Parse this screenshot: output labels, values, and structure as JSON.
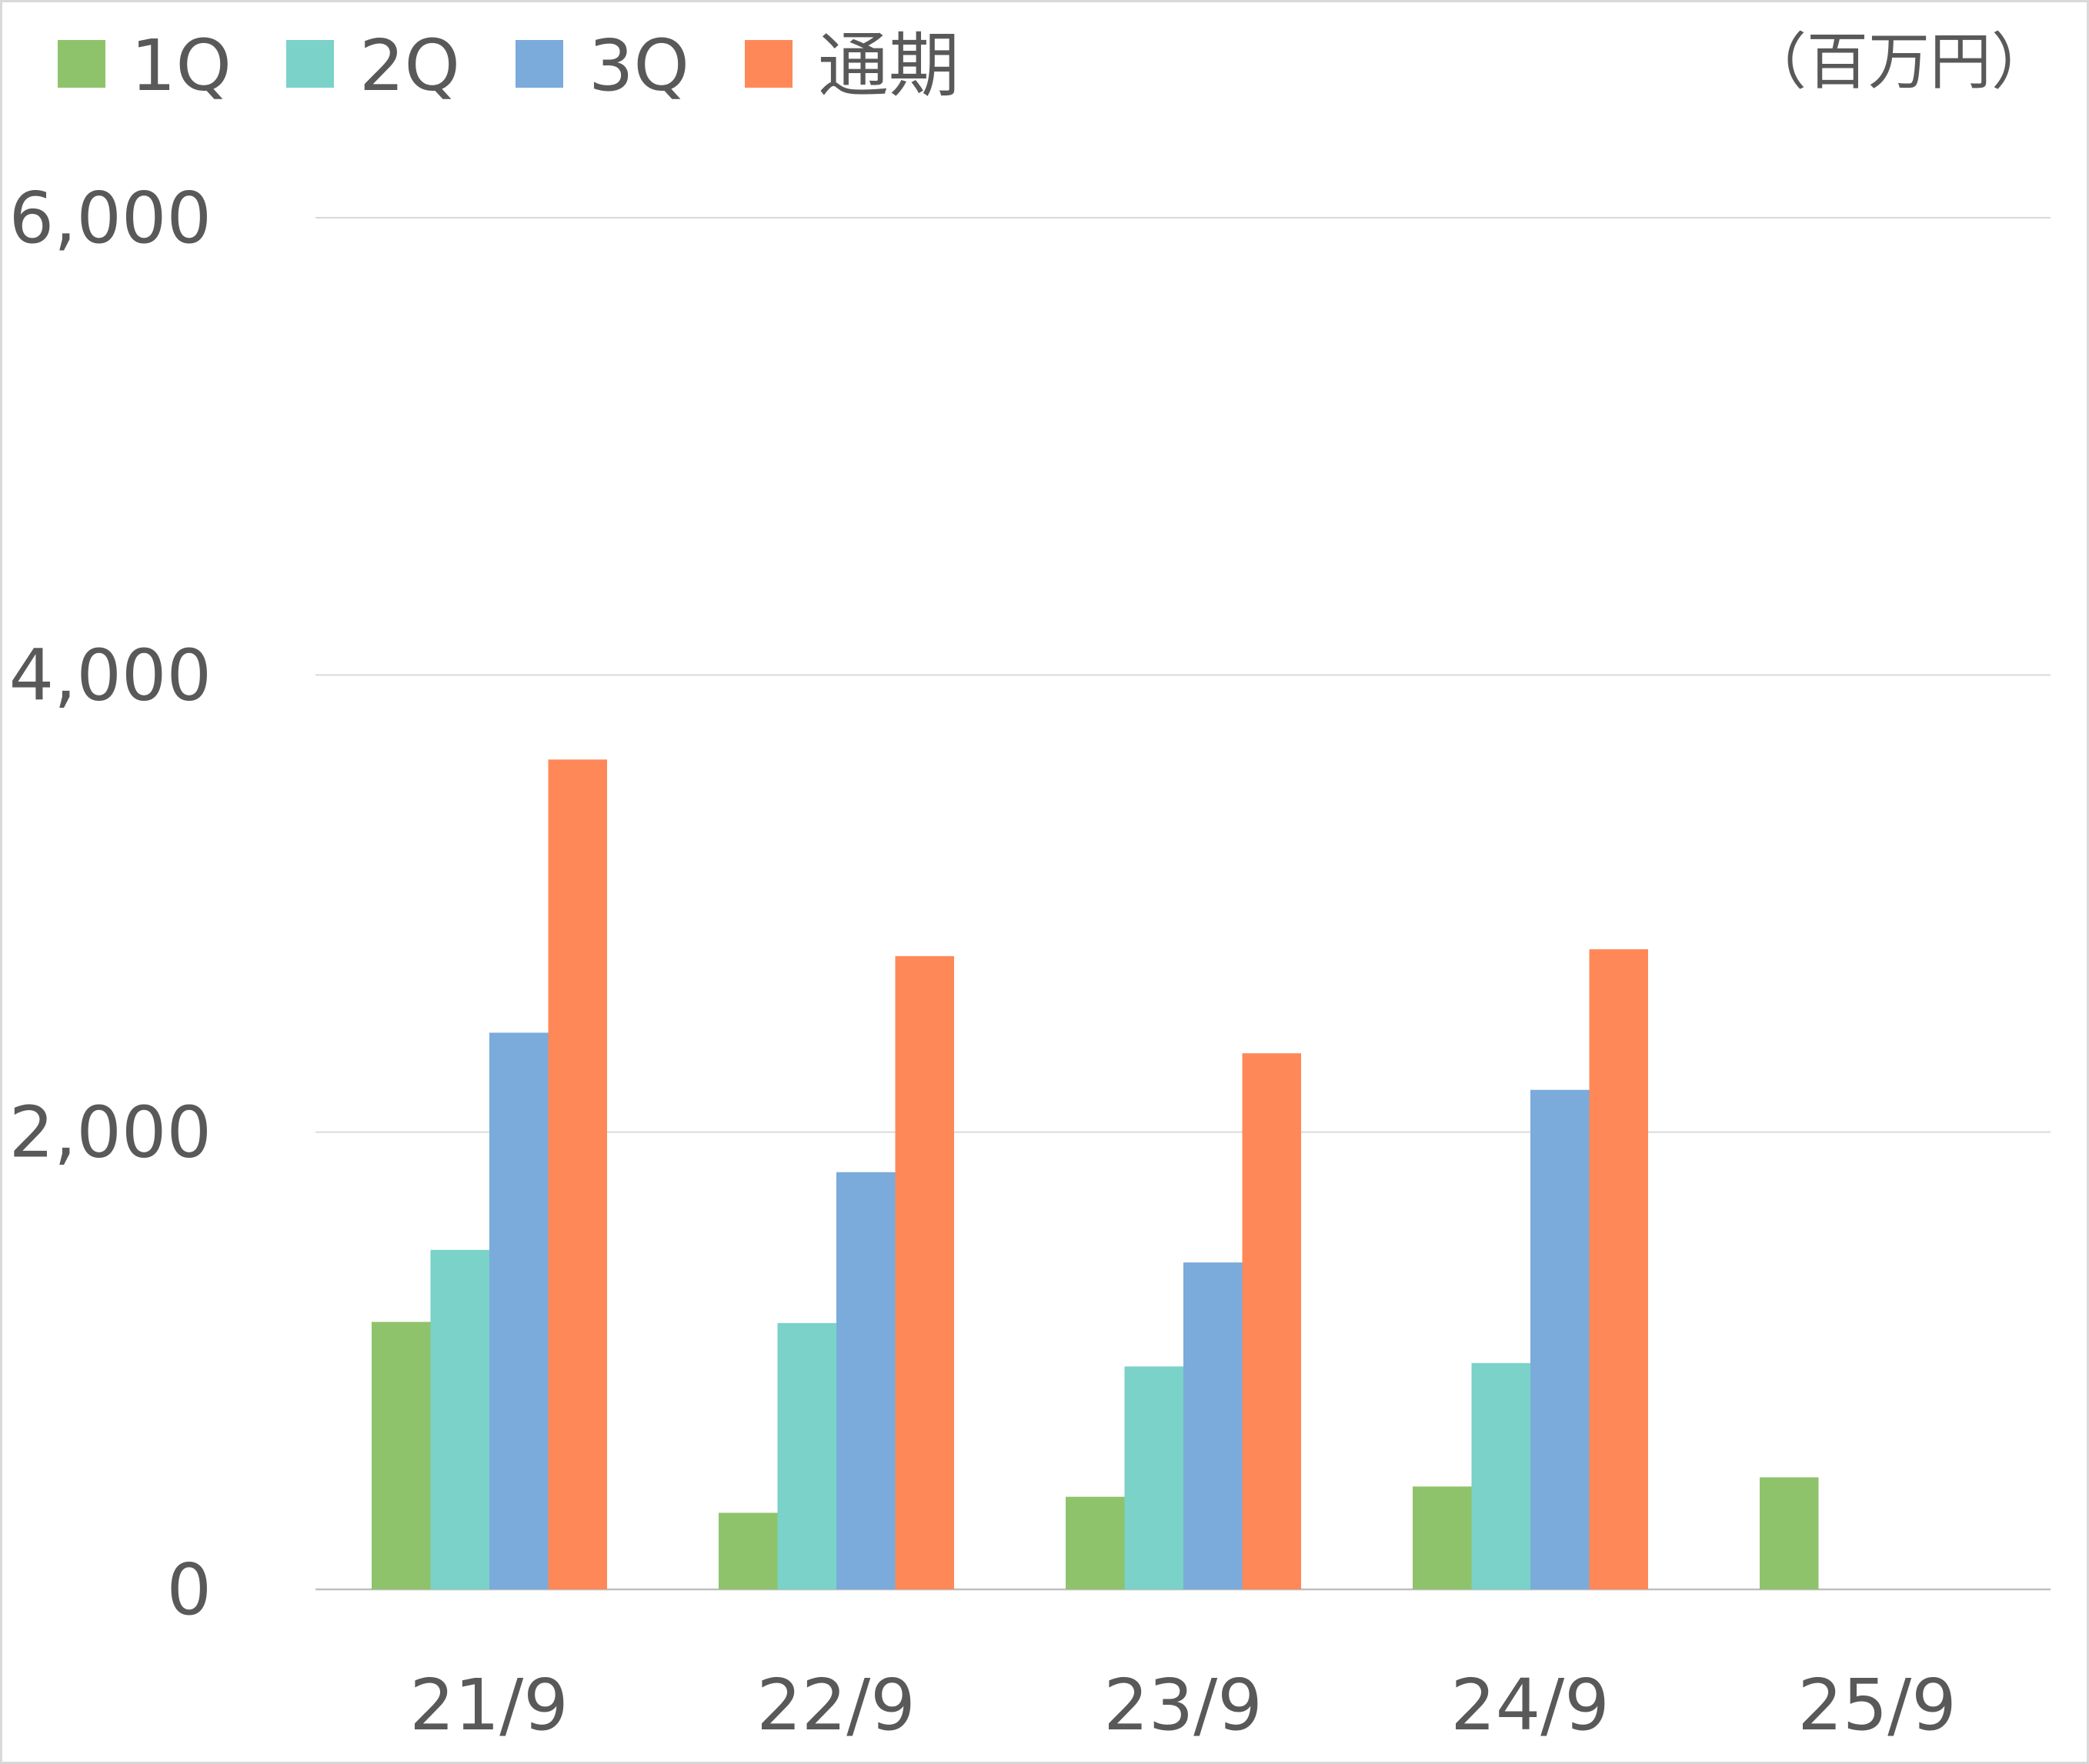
{
  "chart_data": {
    "type": "bar",
    "categories": [
      "21/9",
      "22/9",
      "23/9",
      "24/9",
      "25/9"
    ],
    "series": [
      {
        "name": "1Q",
        "color": "#8fc36b",
        "values": [
          1170,
          335,
          405,
          450,
          490
        ]
      },
      {
        "name": "2Q",
        "color": "#7ad2c8",
        "values": [
          1485,
          1165,
          975,
          990,
          null
        ]
      },
      {
        "name": "3Q",
        "color": "#7aabdb",
        "values": [
          2435,
          1825,
          1430,
          2185,
          null
        ]
      },
      {
        "name": "通期",
        "color": "#ff8859",
        "values": [
          3630,
          2770,
          2345,
          2800,
          null
        ]
      }
    ],
    "unit_label": "（百万円）",
    "title": "",
    "xlabel": "",
    "ylabel": "",
    "ylim": [
      0,
      6000
    ],
    "yticks": [
      0,
      2000,
      4000,
      6000
    ],
    "ytick_labels": [
      "0",
      "2,000",
      "4,000",
      "6,000"
    ],
    "grid": true,
    "legend_position": "top-left"
  }
}
